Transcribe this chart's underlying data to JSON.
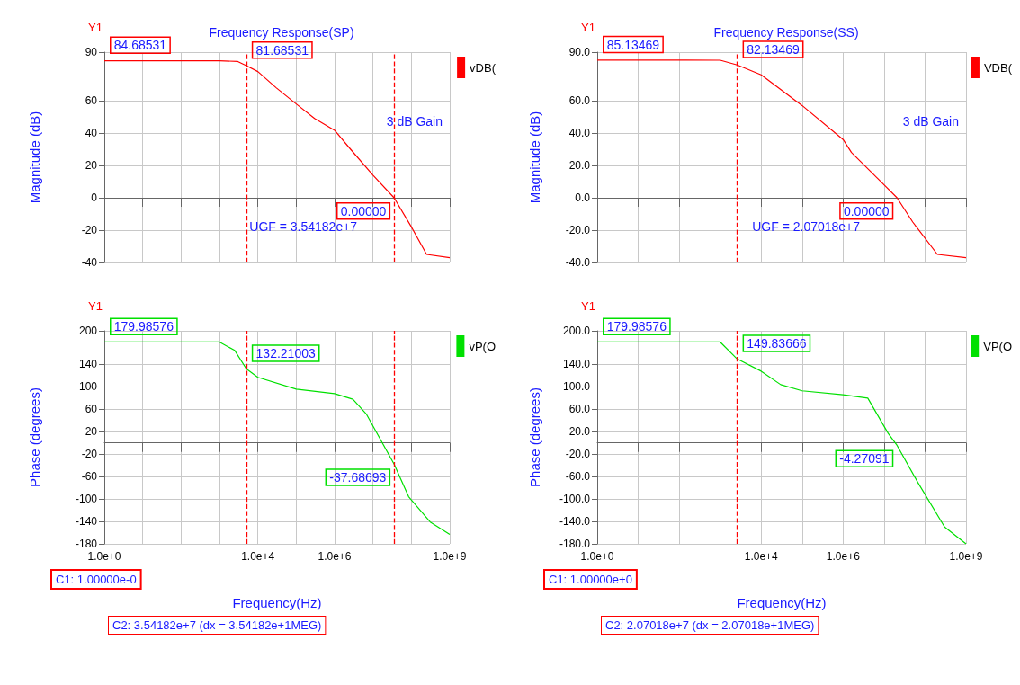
{
  "chart_data": [
    {
      "type": "line",
      "title": "Frequency Response(SP)",
      "ylabel": "Magnitude (dB)",
      "log": "x",
      "grid": true,
      "legend": "right",
      "tick_labels": "y",
      "xlim": [
        1,
        1000000000
      ],
      "xticks": [
        {
          "value": 1,
          "label": null
        },
        {
          "value": 10,
          "label": null
        },
        {
          "value": 100,
          "label": null
        },
        {
          "value": 1000,
          "label": null
        },
        {
          "value": 10000,
          "label": null
        },
        {
          "value": 100000,
          "label": null
        },
        {
          "value": 1000000,
          "label": null
        },
        {
          "value": 10000000,
          "label": null
        },
        {
          "value": 100000000,
          "label": null
        },
        {
          "value": 1000000000,
          "label": null
        }
      ],
      "ylim": [
        -40,
        90
      ],
      "yticks": [
        90,
        60,
        40,
        20,
        0,
        -20,
        -40
      ],
      "series": [
        {
          "name": "vDB(",
          "color": "#ff0000",
          "x": [
            1,
            1000,
            3000,
            5000,
            10000,
            30000,
            100000,
            300000,
            1000000,
            2600000,
            10000000,
            35418200,
            100000000,
            250000000,
            1000000000
          ],
          "values": [
            84.7,
            84.7,
            84.2,
            81.7,
            78,
            68,
            58,
            49,
            41.7,
            30,
            14,
            0,
            -18,
            -35,
            -37
          ]
        }
      ],
      "ref_lines": [
        {
          "axis": "x",
          "value": 5000,
          "color": "#ff0000",
          "line_style": "dashed"
        },
        {
          "axis": "x",
          "value": 35418200,
          "color": "#ff0000",
          "line_style": "dashed"
        }
      ],
      "annotations": [
        "Y1",
        "3 dB Gain",
        "UGF = 3.54182e+7",
        {
          "text": "84.68531",
          "x": 1,
          "y": 84.68531
        },
        {
          "text": "81.68531",
          "x": 5000,
          "y": 81.68531
        },
        {
          "text": "0.00000",
          "x": 35418200,
          "y": 0
        }
      ]
    },
    {
      "type": "line",
      "title": "Frequency Response(SS)",
      "ylabel": "Magnitude (dB)",
      "log": "x",
      "grid": true,
      "legend": "right",
      "tick_labels": "y",
      "xlim": [
        1,
        1000000000
      ],
      "xticks": [
        {
          "value": 1,
          "label": null
        },
        {
          "value": 10,
          "label": null
        },
        {
          "value": 100,
          "label": null
        },
        {
          "value": 1000,
          "label": null
        },
        {
          "value": 10000,
          "label": null
        },
        {
          "value": 100000,
          "label": null
        },
        {
          "value": 1000000,
          "label": null
        },
        {
          "value": 10000000,
          "label": null
        },
        {
          "value": 100000000,
          "label": null
        },
        {
          "value": 1000000000,
          "label": null
        }
      ],
      "ylim": [
        -40,
        90
      ],
      "yticks": [
        {
          "value": 90,
          "label": "90.0"
        },
        {
          "value": 60,
          "label": "60.0"
        },
        {
          "value": 40,
          "label": "40.0"
        },
        {
          "value": 20,
          "label": "20.0"
        },
        {
          "value": 0,
          "label": "0.0"
        },
        {
          "value": -20,
          "label": "-20.0"
        },
        {
          "value": -40,
          "label": "-40.0"
        }
      ],
      "series": [
        {
          "name": "VDB(",
          "color": "#ff0000",
          "x": [
            1,
            1000,
            2600,
            10000,
            100000,
            1000000,
            1600000,
            10000000,
            20701800,
            50000000,
            200000000,
            1000000000
          ],
          "values": [
            85.1,
            85,
            82.1,
            76,
            57,
            36,
            28,
            8,
            0,
            -15,
            -35,
            -37
          ]
        }
      ],
      "ref_lines": [
        {
          "axis": "x",
          "value": 2600,
          "color": "#ff0000",
          "line_style": "dashed"
        }
      ],
      "annotations": [
        "Y1",
        "3 dB Gain",
        "UGF = 2.07018e+7",
        {
          "text": "85.13469",
          "x": 1,
          "y": 85.13469
        },
        {
          "text": "82.13469",
          "x": 2600,
          "y": 82.13469
        },
        {
          "text": "0.00000",
          "x": 20701800,
          "y": 0
        }
      ]
    },
    {
      "type": "line",
      "xlabel": "Frequency(Hz)",
      "ylabel": "Phase (degrees)",
      "log": "x",
      "grid": true,
      "legend": "right",
      "xlim": [
        1,
        1000000000
      ],
      "xticks": [
        {
          "value": 1,
          "label": "1.0e+0"
        },
        {
          "value": 10,
          "label": null
        },
        {
          "value": 100,
          "label": null
        },
        {
          "value": 1000,
          "label": null
        },
        {
          "value": 10000,
          "label": "1.0e+4"
        },
        {
          "value": 100000,
          "label": null
        },
        {
          "value": 1000000,
          "label": "1.0e+6"
        },
        {
          "value": 10000000,
          "label": null
        },
        {
          "value": 100000000,
          "label": null
        },
        {
          "value": 1000000000,
          "label": "1.0e+9"
        }
      ],
      "ylim": [
        -180,
        200
      ],
      "yticks": [
        200,
        140,
        100,
        60,
        20,
        -20,
        -60,
        -100,
        -140,
        -180
      ],
      "series": [
        {
          "name": "vP(O",
          "color": "#00e000",
          "x": [
            1,
            1000,
            2500,
            5000,
            10000,
            100000,
            1000000,
            3000000,
            6800000,
            35418200,
            85000000,
            310000000,
            1000000000
          ],
          "values": [
            180,
            180,
            165,
            132.2,
            117,
            96,
            88,
            78,
            51,
            -37.7,
            -96,
            -141,
            -163
          ]
        }
      ],
      "ref_lines": [
        {
          "axis": "x",
          "value": 5000,
          "color": "#ff0000",
          "line_style": "dashed"
        },
        {
          "axis": "x",
          "value": 35418200,
          "color": "#ff0000",
          "line_style": "dashed"
        }
      ],
      "annotations": [
        "Y1",
        "C1: 1.00000e-0",
        "C2: 3.54182e+7 (dx = 3.54182e+1MEG)",
        {
          "text": "179.98576",
          "x": 1,
          "y": 179.98576
        },
        {
          "text": "132.21003",
          "x": 5000,
          "y": 132.21003
        },
        {
          "text": "-37.68693",
          "x": 35418200,
          "y": -37.68693
        }
      ]
    },
    {
      "type": "line",
      "xlabel": "Frequency(Hz)",
      "ylabel": "Phase (degrees)",
      "log": "x",
      "grid": true,
      "legend": "right",
      "xlim": [
        1,
        1000000000
      ],
      "xticks": [
        {
          "value": 1,
          "label": "1.0e+0"
        },
        {
          "value": 10,
          "label": null
        },
        {
          "value": 100,
          "label": null
        },
        {
          "value": 1000,
          "label": null
        },
        {
          "value": 10000,
          "label": "1.0e+4"
        },
        {
          "value": 100000,
          "label": null
        },
        {
          "value": 1000000,
          "label": "1.0e+6"
        },
        {
          "value": 10000000,
          "label": null
        },
        {
          "value": 100000000,
          "label": null
        },
        {
          "value": 1000000000,
          "label": "1.0e+9"
        }
      ],
      "ylim": [
        -180,
        200
      ],
      "yticks": [
        {
          "value": 200,
          "label": "200.0"
        },
        {
          "value": 140,
          "label": "140.0"
        },
        {
          "value": 100,
          "label": "100.0"
        },
        {
          "value": 60,
          "label": "60.0"
        },
        {
          "value": 20,
          "label": "20.0"
        },
        {
          "value": -20,
          "label": "-20.0"
        },
        {
          "value": -60,
          "label": "-60.0"
        },
        {
          "value": -100,
          "label": "-100.0"
        },
        {
          "value": -140,
          "label": "-140.0"
        },
        {
          "value": -180,
          "label": "-180.0"
        }
      ],
      "series": [
        {
          "name": "VP(O",
          "color": "#00e000",
          "x": [
            1,
            1000,
            2600,
            10000,
            30000,
            100000,
            1000000,
            4000000,
            12600000,
            20701800,
            66000000,
            300000000,
            1000000000
          ],
          "values": [
            180,
            180,
            149.8,
            128,
            104,
            93,
            86,
            80,
            17,
            -4.3,
            -70,
            -150,
            -180
          ]
        }
      ],
      "ref_lines": [
        {
          "axis": "x",
          "value": 2600,
          "color": "#ff0000",
          "line_style": "dashed"
        }
      ],
      "annotations": [
        "Y1",
        "C1: 1.00000e+0",
        "C2: 2.07018e+7 (dx = 2.07018e+1MEG)",
        {
          "text": "179.98576",
          "x": 1,
          "y": 179.98576
        },
        {
          "text": "149.83666",
          "x": 2600,
          "y": 149.83666
        },
        {
          "text": "-4.27091",
          "x": 20701800,
          "y": -4.27091
        }
      ]
    }
  ]
}
